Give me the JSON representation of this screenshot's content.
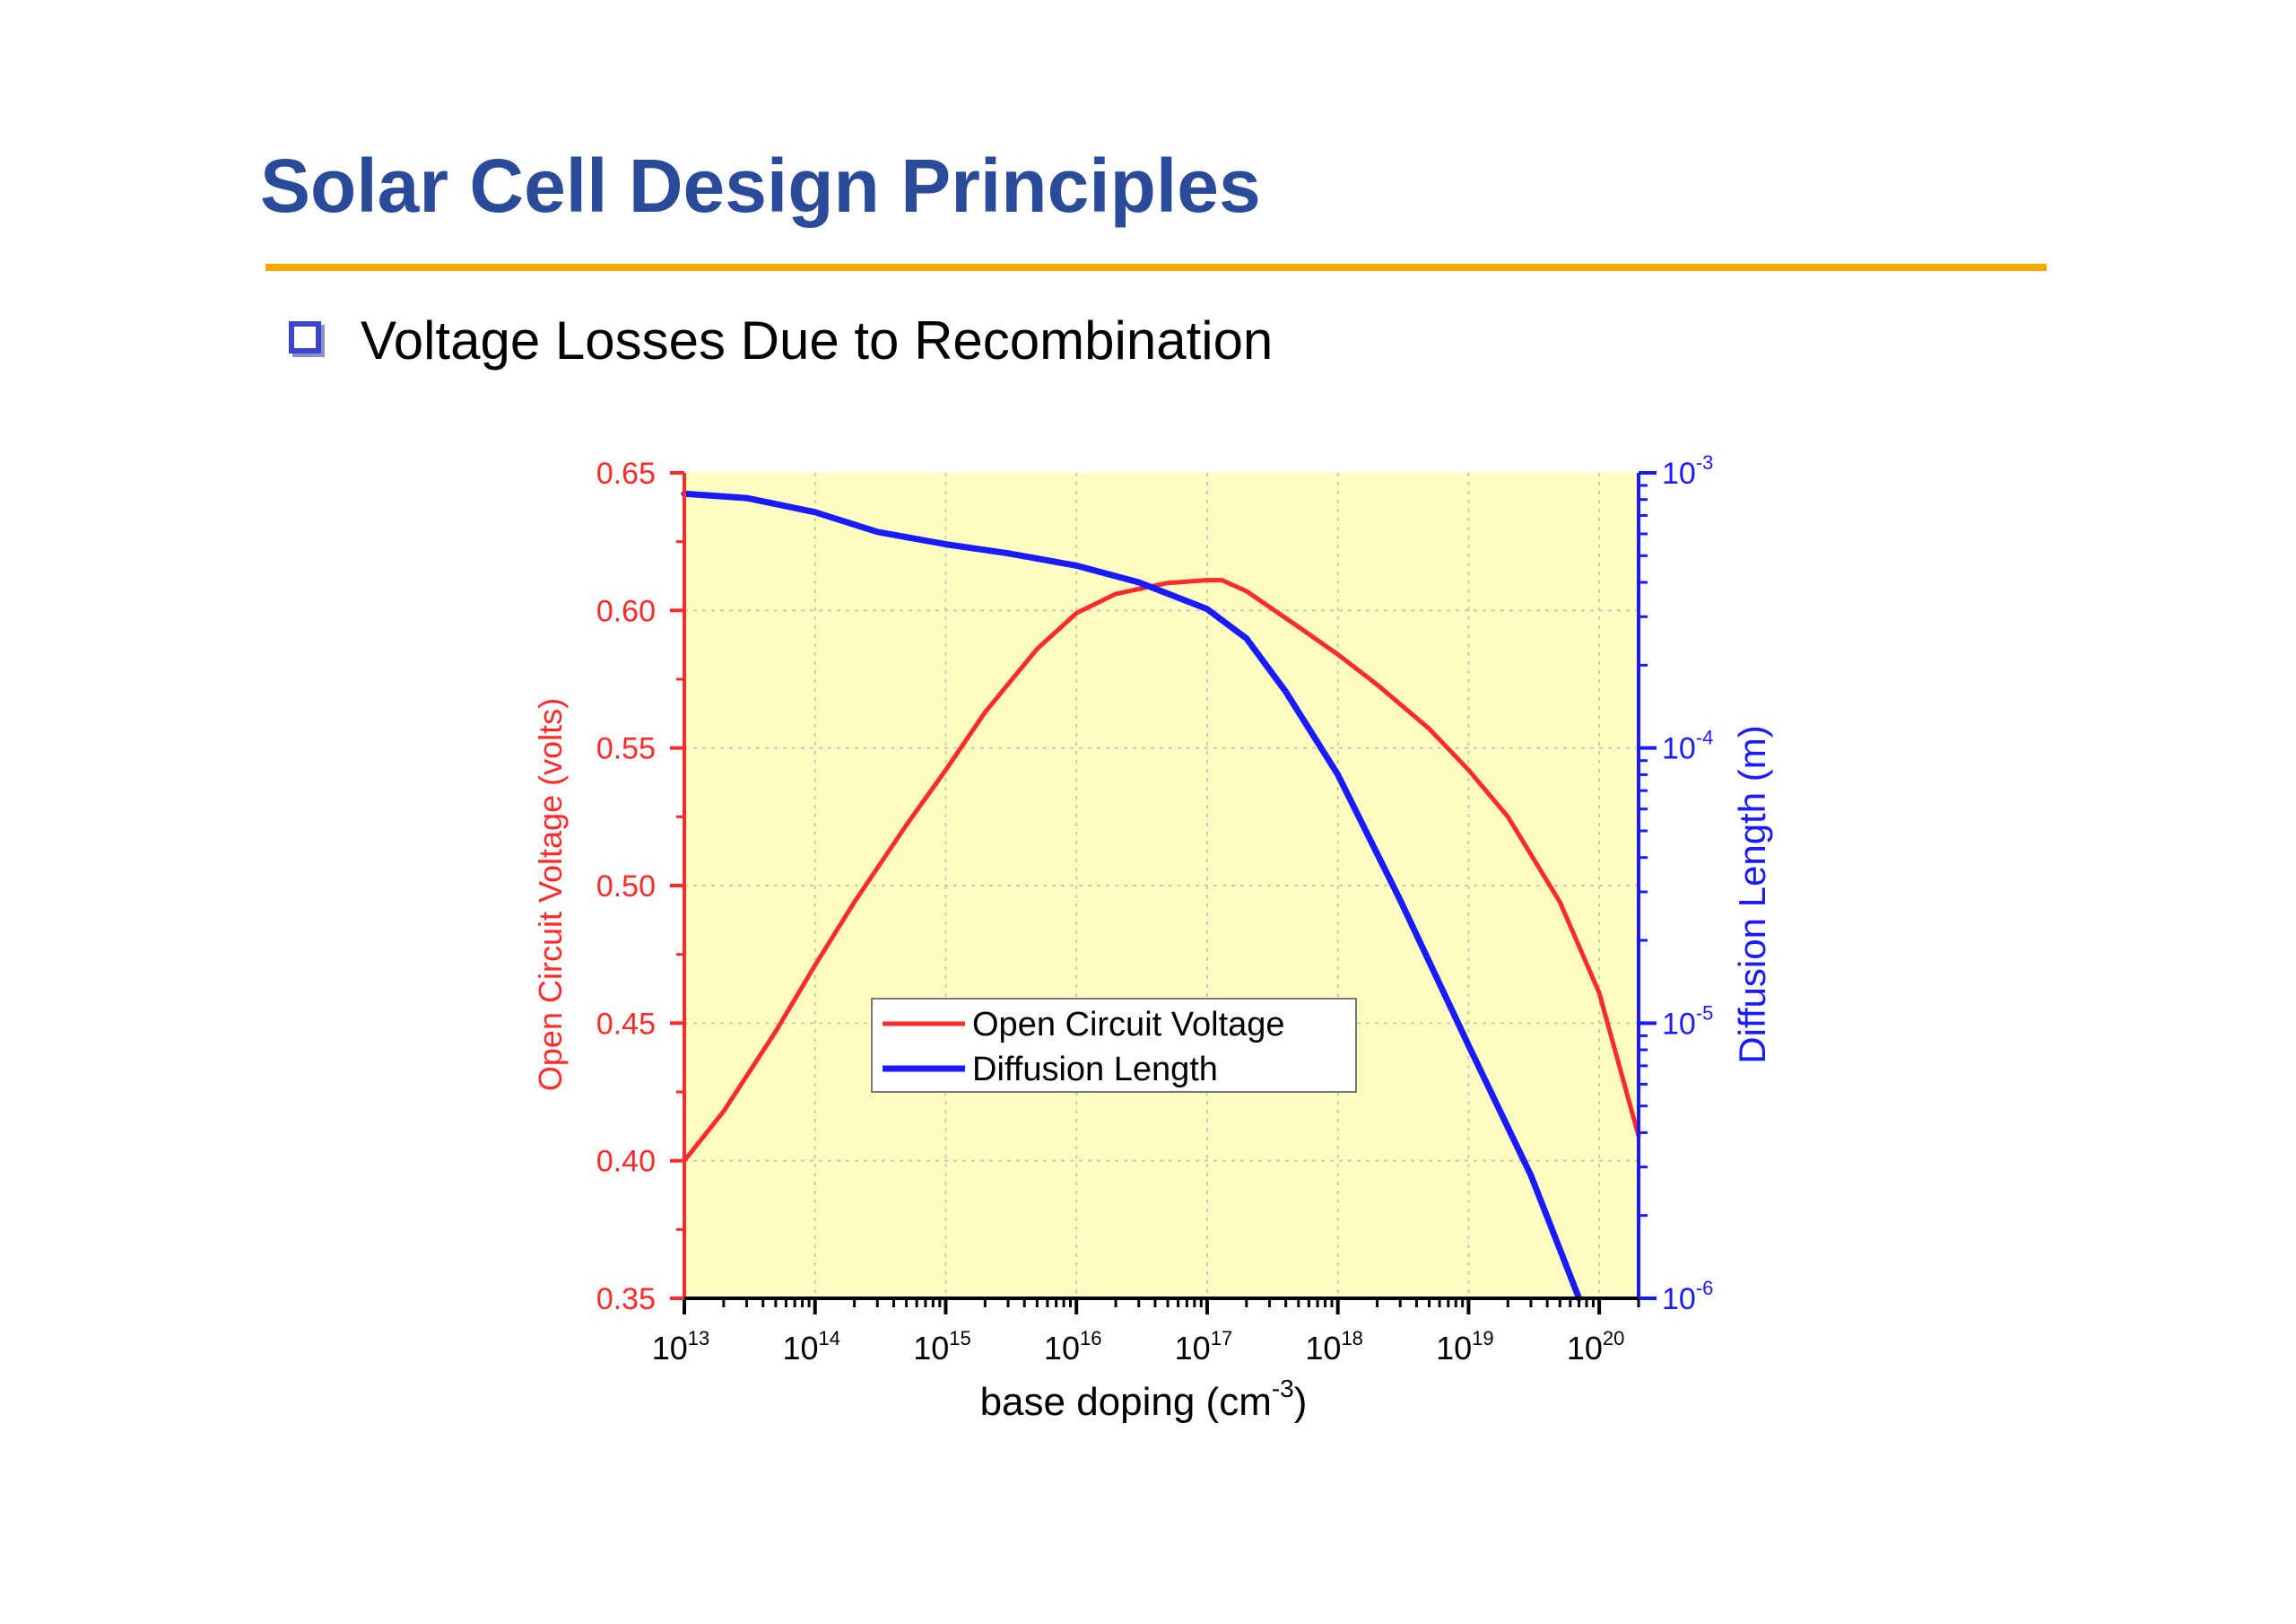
{
  "slide": {
    "title": "Solar Cell Design Principles",
    "bullet": "Voltage Losses Due to Recombination"
  },
  "colors": {
    "title": "#2a4a9a",
    "rule": "#f5a800",
    "bullet": "#3b47c8",
    "plot_background": "#fdfdc2",
    "voc_series": "#ff2a2a",
    "diffusion_series": "#1a1aff"
  },
  "icons": {
    "bullet": "hollow-square-bullet-icon"
  },
  "chart_data": {
    "type": "line",
    "title": "",
    "xlabel": "base doping (cm",
    "xlabel_superscript": "-3",
    "xlabel_suffix": ")",
    "xscale": "log",
    "xlim": [
      10000000000000.0,
      2e+20
    ],
    "x_ticks": [
      {
        "base": "10",
        "exp": "13",
        "value": 10000000000000.0
      },
      {
        "base": "10",
        "exp": "14",
        "value": 100000000000000.0
      },
      {
        "base": "10",
        "exp": "15",
        "value": 1000000000000000.0
      },
      {
        "base": "10",
        "exp": "16",
        "value": 1e+16
      },
      {
        "base": "10",
        "exp": "17",
        "value": 1e+17
      },
      {
        "base": "10",
        "exp": "18",
        "value": 1e+18
      },
      {
        "base": "10",
        "exp": "19",
        "value": 1e+19
      },
      {
        "base": "10",
        "exp": "20",
        "value": 1e+20
      }
    ],
    "y_left": {
      "label": "Open Circuit Voltage (volts)",
      "lim": [
        0.35,
        0.65
      ],
      "scale": "linear",
      "ticks": [
        "0.35",
        "0.40",
        "0.45",
        "0.50",
        "0.55",
        "0.60",
        "0.65"
      ]
    },
    "y_right": {
      "label": "Diffusion Length (m)",
      "lim": [
        1e-06,
        0.001
      ],
      "scale": "log",
      "ticks": [
        {
          "base": "10",
          "exp": "-6",
          "value": 1e-06
        },
        {
          "base": "10",
          "exp": "-5",
          "value": 1e-05
        },
        {
          "base": "10",
          "exp": "-4",
          "value": 0.0001
        },
        {
          "base": "10",
          "exp": "-3",
          "value": 0.001
        }
      ]
    },
    "grid": true,
    "legend_position": "center",
    "series": [
      {
        "name": "Open Circuit Voltage",
        "axis": "left",
        "x": [
          10000000000000.0,
          20000000000000.0,
          50000000000000.0,
          100000000000000.0,
          200000000000000.0,
          500000000000000.0,
          1000000000000000.0,
          2000000000000000.0,
          5000000000000000.0,
          1e+16,
          2e+16,
          5e+16,
          1e+17,
          1.3e+17,
          2e+17,
          5e+17,
          1e+18,
          2e+18,
          5e+18,
          1e+19,
          2e+19,
          5e+19,
          1e+20,
          2e+20
        ],
        "values": [
          0.4,
          0.418,
          0.447,
          0.471,
          0.494,
          0.522,
          0.542,
          0.563,
          0.586,
          0.599,
          0.606,
          0.61,
          0.611,
          0.611,
          0.607,
          0.594,
          0.584,
          0.573,
          0.557,
          0.542,
          0.525,
          0.494,
          0.461,
          0.409
        ]
      },
      {
        "name": "Diffusion Length",
        "axis": "right",
        "x": [
          10000000000000.0,
          30000000000000.0,
          100000000000000.0,
          300000000000000.0,
          1000000000000000.0,
          3000000000000000.0,
          1e+16,
          3e+16,
          1e+17,
          2e+17,
          4e+17,
          1e+18,
          3e+18,
          1e+19,
          3e+19,
          7e+19
        ],
        "values": [
          0.00084,
          0.00081,
          0.00072,
          0.00061,
          0.00055,
          0.00051,
          0.00046,
          0.0004,
          0.00032,
          0.00025,
          0.00016,
          8e-05,
          2.8e-05,
          8.3e-06,
          2.8e-06,
          1e-06
        ]
      }
    ]
  }
}
